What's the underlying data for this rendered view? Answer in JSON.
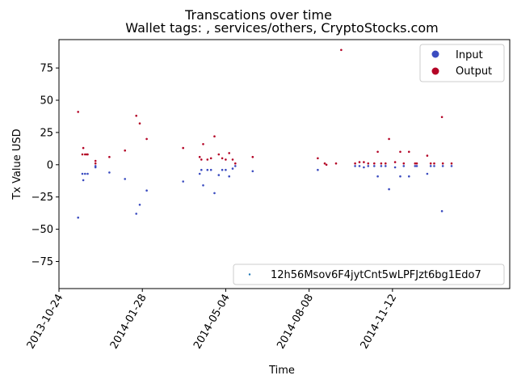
{
  "chart_data": {
    "type": "scatter",
    "title": "Transcations over time",
    "subtitle": "Wallet tags: , services/others, CryptoStocks.com",
    "xlabel": "Time",
    "ylabel": "Tx Value USD",
    "x_ticks": [
      "2013-10-24",
      "2014-01-28",
      "2014-05-04",
      "2014-08-08",
      "2014-11-12"
    ],
    "y_ticks": [
      -75,
      -50,
      -25,
      0,
      25,
      50,
      75
    ],
    "xlim": [
      "2013-10-24",
      "2015-03-27"
    ],
    "ylim": [
      -96,
      97
    ],
    "grid": false,
    "legend_top_right": [
      {
        "label": "Input",
        "color": "#3b4cc0"
      },
      {
        "label": "Output",
        "color": "#b40426"
      }
    ],
    "legend_bottom_right": {
      "label": "12h56Msov6F4jytCnt5wLPFJzt6bg1Edo7",
      "color": "#1f77b4"
    },
    "series": [
      {
        "name": "Input",
        "color": "#3b4cc0",
        "points": [
          [
            "2013-11-15",
            -41
          ],
          [
            "2013-11-20",
            -7
          ],
          [
            "2013-11-21",
            -12
          ],
          [
            "2013-11-23",
            -7
          ],
          [
            "2013-11-26",
            -7
          ],
          [
            "2013-12-05",
            -2
          ],
          [
            "2013-12-05",
            -1
          ],
          [
            "2013-12-21",
            -6
          ],
          [
            "2014-01-08",
            -11
          ],
          [
            "2014-01-21",
            -38
          ],
          [
            "2014-01-25",
            -31
          ],
          [
            "2014-02-02",
            -20
          ],
          [
            "2014-03-16",
            -13
          ],
          [
            "2014-04-04",
            -7
          ],
          [
            "2014-04-06",
            -4
          ],
          [
            "2014-04-08",
            -16
          ],
          [
            "2014-04-13",
            -4
          ],
          [
            "2014-04-17",
            -4
          ],
          [
            "2014-04-21",
            -22
          ],
          [
            "2014-04-26",
            -8
          ],
          [
            "2014-04-30",
            -4
          ],
          [
            "2014-05-04",
            -4
          ],
          [
            "2014-05-08",
            -9
          ],
          [
            "2014-05-12",
            -3
          ],
          [
            "2014-05-15",
            -1
          ],
          [
            "2014-06-04",
            -5
          ],
          [
            "2014-08-18",
            -4
          ],
          [
            "2014-09-30",
            -1
          ],
          [
            "2014-10-05",
            -1
          ],
          [
            "2014-10-10",
            -2
          ],
          [
            "2014-10-15",
            -1
          ],
          [
            "2014-10-22",
            -1
          ],
          [
            "2014-10-26",
            -9
          ],
          [
            "2014-10-30",
            -1
          ],
          [
            "2014-11-04",
            -1
          ],
          [
            "2014-11-08",
            -19
          ],
          [
            "2014-11-15",
            -2
          ],
          [
            "2014-11-21",
            -9
          ],
          [
            "2014-11-25",
            -1
          ],
          [
            "2014-12-01",
            -9
          ],
          [
            "2014-12-08",
            -1
          ],
          [
            "2014-12-10",
            -1
          ],
          [
            "2014-12-22",
            -7
          ],
          [
            "2014-12-26",
            -1
          ],
          [
            "2014-12-30",
            -1
          ],
          [
            "2015-01-08",
            -36
          ],
          [
            "2015-01-09",
            -1
          ],
          [
            "2015-01-19",
            -1
          ]
        ]
      },
      {
        "name": "Output",
        "color": "#b40426",
        "points": [
          [
            "2013-11-15",
            41
          ],
          [
            "2013-11-20",
            8
          ],
          [
            "2013-11-21",
            13
          ],
          [
            "2013-11-23",
            8
          ],
          [
            "2013-11-25",
            8
          ],
          [
            "2013-11-26",
            8
          ],
          [
            "2013-12-05",
            3
          ],
          [
            "2013-12-05",
            1
          ],
          [
            "2013-12-21",
            6
          ],
          [
            "2014-01-08",
            11
          ],
          [
            "2014-01-21",
            38
          ],
          [
            "2014-01-25",
            32
          ],
          [
            "2014-02-02",
            20
          ],
          [
            "2014-03-16",
            13
          ],
          [
            "2014-04-04",
            6
          ],
          [
            "2014-04-06",
            4
          ],
          [
            "2014-04-08",
            16
          ],
          [
            "2014-04-13",
            4
          ],
          [
            "2014-04-17",
            5
          ],
          [
            "2014-04-21",
            22
          ],
          [
            "2014-04-26",
            8
          ],
          [
            "2014-04-30",
            5
          ],
          [
            "2014-05-04",
            4
          ],
          [
            "2014-05-08",
            9
          ],
          [
            "2014-05-12",
            4
          ],
          [
            "2014-05-15",
            1
          ],
          [
            "2014-06-04",
            6
          ],
          [
            "2014-08-18",
            5
          ],
          [
            "2014-08-26",
            1
          ],
          [
            "2014-08-28",
            0
          ],
          [
            "2014-09-08",
            1
          ],
          [
            "2014-09-14",
            89
          ],
          [
            "2014-09-30",
            1
          ],
          [
            "2014-10-05",
            2
          ],
          [
            "2014-10-10",
            2
          ],
          [
            "2014-10-15",
            1
          ],
          [
            "2014-10-22",
            1
          ],
          [
            "2014-10-26",
            10
          ],
          [
            "2014-10-30",
            1
          ],
          [
            "2014-11-04",
            1
          ],
          [
            "2014-11-08",
            20
          ],
          [
            "2014-11-15",
            2
          ],
          [
            "2014-11-21",
            10
          ],
          [
            "2014-11-25",
            1
          ],
          [
            "2014-12-01",
            10
          ],
          [
            "2014-12-08",
            1
          ],
          [
            "2014-12-10",
            1
          ],
          [
            "2014-12-22",
            7
          ],
          [
            "2014-12-26",
            1
          ],
          [
            "2014-12-30",
            1
          ],
          [
            "2015-01-08",
            37
          ],
          [
            "2015-01-09",
            1
          ],
          [
            "2015-01-19",
            1
          ]
        ]
      }
    ]
  }
}
